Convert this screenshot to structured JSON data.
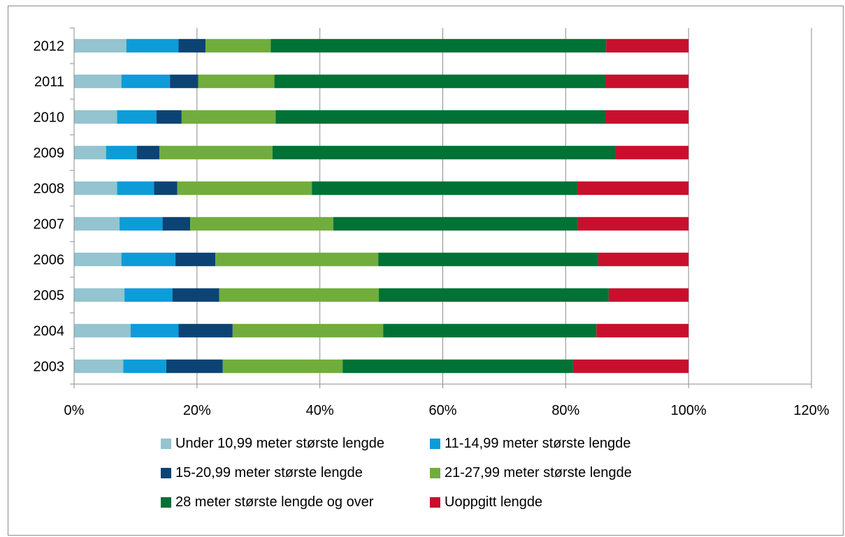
{
  "chart_data": {
    "type": "bar",
    "orientation": "horizontal",
    "stacked": "percent",
    "categories": [
      "2003",
      "2004",
      "2005",
      "2006",
      "2007",
      "2008",
      "2009",
      "2010",
      "2011",
      "2012"
    ],
    "series": [
      {
        "name": "Under 10,99 meter største lengde",
        "color": "#93c4cf",
        "values": [
          8.0,
          9.2,
          8.2,
          7.7,
          7.4,
          7.0,
          5.2,
          7.0,
          7.7,
          8.5
        ]
      },
      {
        "name": "11-14,99 meter største lengde",
        "color": "#0e9cd9",
        "values": [
          7.0,
          7.8,
          7.8,
          8.8,
          7.0,
          6.0,
          5.0,
          6.4,
          7.9,
          8.5
        ]
      },
      {
        "name": "15-20,99 meter største lengde",
        "color": "#0b4474",
        "values": [
          9.2,
          8.8,
          7.6,
          6.5,
          4.5,
          3.8,
          3.7,
          4.1,
          4.6,
          4.4
        ]
      },
      {
        "name": "21-27,99 meter største lengde",
        "color": "#71ad3c",
        "values": [
          19.5,
          24.5,
          26.0,
          26.5,
          23.3,
          21.9,
          18.4,
          15.3,
          12.4,
          10.6
        ]
      },
      {
        "name": "28 meter største lengde og over",
        "color": "#007236",
        "values": [
          37.5,
          34.7,
          37.4,
          35.8,
          39.8,
          43.2,
          55.8,
          53.7,
          53.9,
          54.6
        ]
      },
      {
        "name": "Uoppgitt lengde",
        "color": "#c8102e",
        "values": [
          18.8,
          15.0,
          13.0,
          14.7,
          18.0,
          18.1,
          11.9,
          13.5,
          13.5,
          13.4
        ]
      }
    ],
    "xlim": [
      0,
      120
    ],
    "x_ticks": [
      "0%",
      "20%",
      "40%",
      "60%",
      "80%",
      "100%",
      "120%"
    ],
    "grid": true,
    "legend_position": "bottom",
    "title": "",
    "xlabel": "",
    "ylabel": ""
  }
}
